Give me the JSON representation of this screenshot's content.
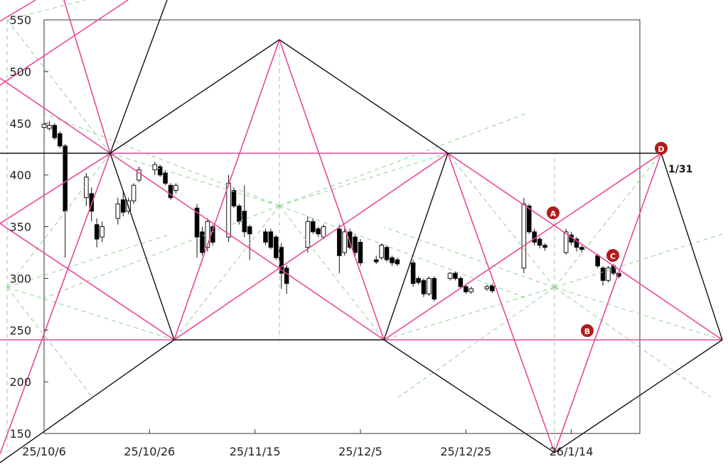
{
  "chart_data": {
    "type": "candlestick",
    "x": [
      "2025-10-06",
      "2025-10-07",
      "2025-10-08",
      "2025-10-09",
      "2025-10-10",
      "2025-10-14",
      "2025-10-15",
      "2025-10-16",
      "2025-10-17",
      "2025-10-20",
      "2025-10-21",
      "2025-10-22",
      "2025-10-23",
      "2025-10-24",
      "2025-10-27",
      "2025-10-28",
      "2025-10-29",
      "2025-10-30",
      "2025-10-31",
      "2025-11-04",
      "2025-11-05",
      "2025-11-06",
      "2025-11-07",
      "2025-11-10",
      "2025-11-11",
      "2025-11-12",
      "2025-11-13",
      "2025-11-14",
      "2025-11-17",
      "2025-11-18",
      "2025-11-19",
      "2025-11-20",
      "2025-11-21",
      "2025-11-25",
      "2025-11-26",
      "2025-11-27",
      "2025-11-28",
      "2025-12-01",
      "2025-12-02",
      "2025-12-03",
      "2025-12-04",
      "2025-12-05",
      "2025-12-08",
      "2025-12-09",
      "2025-12-10",
      "2025-12-11",
      "2025-12-12",
      "2025-12-15",
      "2025-12-16",
      "2025-12-17",
      "2025-12-18",
      "2025-12-19",
      "2025-12-22",
      "2025-12-23",
      "2025-12-24",
      "2025-12-25",
      "2025-12-26",
      "2025-12-29",
      "2025-12-30",
      "2026-01-05",
      "2026-01-06",
      "2026-01-07",
      "2026-01-08",
      "2026-01-09",
      "2026-01-13",
      "2026-01-14",
      "2026-01-15",
      "2026-01-16",
      "2026-01-19",
      "2026-01-20",
      "2026-01-21",
      "2026-01-22",
      "2026-01-23"
    ],
    "open": [
      446,
      445,
      448,
      440,
      428,
      378,
      382,
      352,
      340,
      358,
      376,
      365,
      375,
      395,
      405,
      408,
      402,
      390,
      385,
      368,
      345,
      330,
      350,
      340,
      385,
      370,
      365,
      350,
      345,
      345,
      340,
      330,
      310,
      330,
      355,
      348,
      340,
      348,
      325,
      345,
      340,
      335,
      318,
      320,
      330,
      320,
      318,
      315,
      300,
      298,
      285,
      300,
      300,
      305,
      300,
      292,
      287,
      290,
      293,
      310,
      370,
      345,
      338,
      332,
      325,
      342,
      338,
      330,
      322,
      310,
      298,
      312,
      305
    ],
    "high": [
      452,
      452,
      450,
      442,
      430,
      402,
      388,
      358,
      355,
      378,
      385,
      378,
      392,
      408,
      413,
      410,
      404,
      392,
      392,
      372,
      350,
      358,
      352,
      400,
      388,
      372,
      390,
      352,
      348,
      348,
      342,
      334,
      313,
      360,
      358,
      350,
      352,
      352,
      348,
      348,
      342,
      338,
      322,
      334,
      332,
      322,
      320,
      318,
      302,
      300,
      302,
      302,
      306,
      307,
      302,
      294,
      292,
      294,
      295,
      378,
      372,
      348,
      340,
      334,
      348,
      345,
      340,
      332,
      324,
      312,
      312,
      314,
      307
    ],
    "low": [
      444,
      443,
      434,
      426,
      320,
      370,
      355,
      330,
      335,
      352,
      360,
      362,
      372,
      393,
      400,
      398,
      390,
      376,
      382,
      320,
      322,
      326,
      332,
      335,
      368,
      352,
      340,
      318,
      332,
      328,
      318,
      290,
      285,
      325,
      343,
      340,
      338,
      305,
      322,
      328,
      322,
      312,
      314,
      318,
      316,
      312,
      312,
      292,
      294,
      282,
      283,
      278,
      298,
      298,
      290,
      285,
      285,
      288,
      286,
      305,
      343,
      332,
      329,
      327,
      323,
      332,
      326,
      325,
      310,
      293,
      296,
      303,
      300
    ],
    "close": [
      449,
      448,
      436,
      428,
      365,
      398,
      365,
      338,
      350,
      372,
      364,
      375,
      390,
      405,
      410,
      400,
      392,
      378,
      390,
      340,
      325,
      355,
      335,
      392,
      370,
      355,
      345,
      343,
      335,
      330,
      320,
      305,
      295,
      355,
      345,
      343,
      350,
      322,
      345,
      330,
      325,
      315,
      316,
      332,
      318,
      315,
      314,
      295,
      296,
      285,
      300,
      280,
      305,
      300,
      292,
      287,
      290,
      292,
      288,
      372,
      345,
      335,
      332,
      330,
      345,
      335,
      330,
      328,
      312,
      298,
      310,
      305,
      302
    ],
    "up_color": "#ffffff",
    "down_color": "#000000",
    "xlim": [
      "2025-10-06",
      "2026-01-27"
    ],
    "xticks": [
      {
        "value": "2025-10-06",
        "label": "25/10/6"
      },
      {
        "value": "2025-10-26",
        "label": "25/10/26"
      },
      {
        "value": "2025-11-15",
        "label": "25/11/15"
      },
      {
        "value": "2025-12-05",
        "label": "25/12/5"
      },
      {
        "value": "2025-12-25",
        "label": "25/12/25"
      },
      {
        "value": "2026-01-14",
        "label": "26/1/14"
      }
    ],
    "ylim": [
      150,
      550
    ],
    "yticks": [
      150,
      200,
      250,
      300,
      350,
      400,
      450,
      500,
      550
    ],
    "grid": false,
    "annotations": [
      "A",
      "B",
      "C",
      "D",
      "1/31"
    ]
  }
}
